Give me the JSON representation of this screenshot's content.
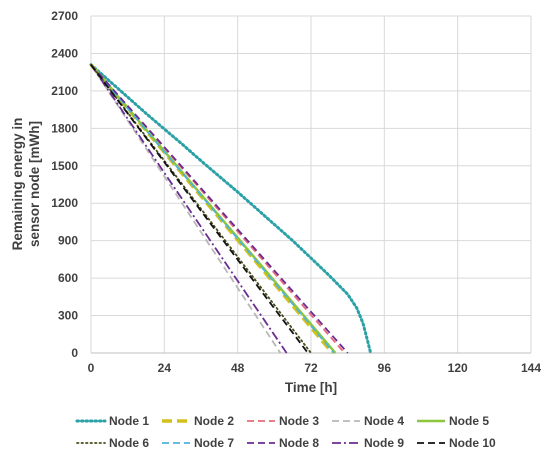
{
  "chart_data": {
    "type": "line",
    "title": "",
    "xlabel": "Time [h]",
    "ylabel_lines": [
      "Remaining energy in",
      "sensor node [mWh]"
    ],
    "xlim": [
      0,
      144
    ],
    "ylim": [
      0,
      2700
    ],
    "xticks": [
      0,
      24,
      48,
      72,
      96,
      120,
      144
    ],
    "yticks": [
      0,
      300,
      600,
      900,
      1200,
      1500,
      1800,
      2100,
      2400,
      2700
    ],
    "grid": true,
    "legend_position": "bottom",
    "series": [
      {
        "name": "Node 1",
        "color": "#2aa1a6",
        "style": "dotted",
        "x": [
          0,
          6,
          12,
          18,
          24,
          30,
          36,
          42,
          48,
          54,
          60,
          66,
          72,
          78,
          84,
          87,
          89,
          90.5,
          91.5
        ],
        "y": [
          2310,
          2180,
          2050,
          1920,
          1795,
          1670,
          1540,
          1415,
          1290,
          1160,
          1030,
          900,
          760,
          620,
          470,
          360,
          240,
          100,
          0
        ]
      },
      {
        "name": "Node 2",
        "color": "#d4c01b",
        "style": "long-dash",
        "x": [
          0,
          79
        ],
        "y": [
          2310,
          0
        ]
      },
      {
        "name": "Node 3",
        "color": "#e66b7a",
        "style": "dash",
        "x": [
          0,
          83
        ],
        "y": [
          2310,
          0
        ]
      },
      {
        "name": "Node 4",
        "color": "#b8b8b8",
        "style": "dash",
        "x": [
          0,
          62
        ],
        "y": [
          2310,
          0
        ]
      },
      {
        "name": "Node 5",
        "color": "#8cc63e",
        "style": "solid",
        "x": [
          0,
          80
        ],
        "y": [
          2310,
          0
        ]
      },
      {
        "name": "Node 6",
        "color": "#4a4a1a",
        "style": "dotted",
        "x": [
          0,
          72
        ],
        "y": [
          2310,
          0
        ]
      },
      {
        "name": "Node 7",
        "color": "#4fb3d9",
        "style": "dash",
        "x": [
          0,
          79.5
        ],
        "y": [
          2310,
          0
        ]
      },
      {
        "name": "Node 8",
        "color": "#6a2c91",
        "style": "dash",
        "x": [
          0,
          84
        ],
        "y": [
          2310,
          0
        ]
      },
      {
        "name": "Node 9",
        "color": "#6a2c91",
        "style": "dash-dot",
        "x": [
          0,
          64
        ],
        "y": [
          2310,
          0
        ]
      },
      {
        "name": "Node 10",
        "color": "#111111",
        "style": "dash",
        "x": [
          0,
          71
        ],
        "y": [
          2310,
          0
        ]
      }
    ]
  }
}
